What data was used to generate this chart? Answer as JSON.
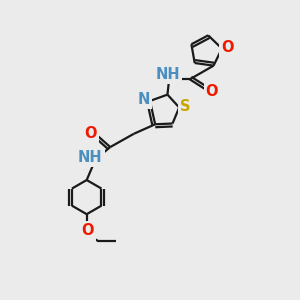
{
  "background_color": "#ebebeb",
  "bond_color": "#1a1a1a",
  "atom_colors": {
    "N": "#4a8fc0",
    "O": "#ee1a00",
    "S": "#c8a800",
    "C": "#1a1a1a"
  },
  "lw": 1.6,
  "fs": 10.5,
  "xlim": [
    0,
    10
  ],
  "ylim": [
    0,
    10
  ]
}
